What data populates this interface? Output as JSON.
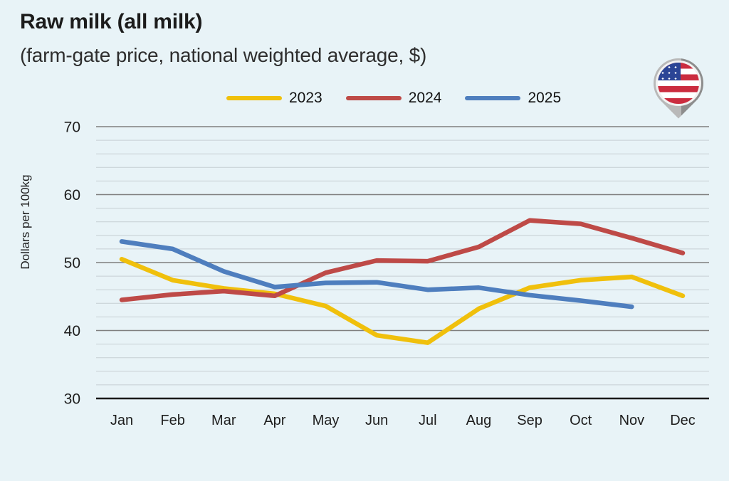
{
  "header": {
    "title": "Raw milk (all milk)",
    "subtitle": "(farm-gate price, national weighted average, $)"
  },
  "icons": {
    "country_badge": "us-flag-location-pin"
  },
  "colors": {
    "background": "#E8F3F7",
    "major_grid": "#7f7f7f",
    "minor_grid": "#c6cfd4",
    "axis": "#1a1a1a",
    "text": "#1e1e1e",
    "series_2023": "#F0C00C",
    "series_2024": "#BE4A47",
    "series_2025": "#4E7EBE"
  },
  "chart_data": {
    "type": "line",
    "title": "Raw milk (all milk)",
    "subtitle": "(farm-gate price, national weighted average, $)",
    "xlabel": "",
    "ylabel": "Dollars per 100kg",
    "categories": [
      "Jan",
      "Feb",
      "Mar",
      "Apr",
      "May",
      "Jun",
      "Jul",
      "Aug",
      "Sep",
      "Oct",
      "Nov",
      "Dec"
    ],
    "ylim": [
      30,
      70
    ],
    "yticks": [
      30,
      40,
      50,
      60,
      70
    ],
    "minor_grid_step": 2,
    "grid": true,
    "legend_position": "top",
    "series": [
      {
        "name": "2023",
        "color": "#F0C00C",
        "values": [
          50.5,
          47.4,
          46.2,
          45.4,
          43.6,
          39.3,
          38.2,
          43.2,
          46.3,
          47.4,
          47.9,
          45.1
        ]
      },
      {
        "name": "2024",
        "color": "#BE4A47",
        "values": [
          44.5,
          45.3,
          45.8,
          45.1,
          48.5,
          50.3,
          50.2,
          52.3,
          56.2,
          55.7,
          53.6,
          51.4
        ]
      },
      {
        "name": "2025",
        "color": "#4E7EBE",
        "values": [
          53.1,
          52.0,
          48.7,
          46.4,
          47.0,
          47.1,
          46.0,
          46.3,
          45.2,
          44.4,
          43.5,
          null
        ]
      }
    ]
  }
}
